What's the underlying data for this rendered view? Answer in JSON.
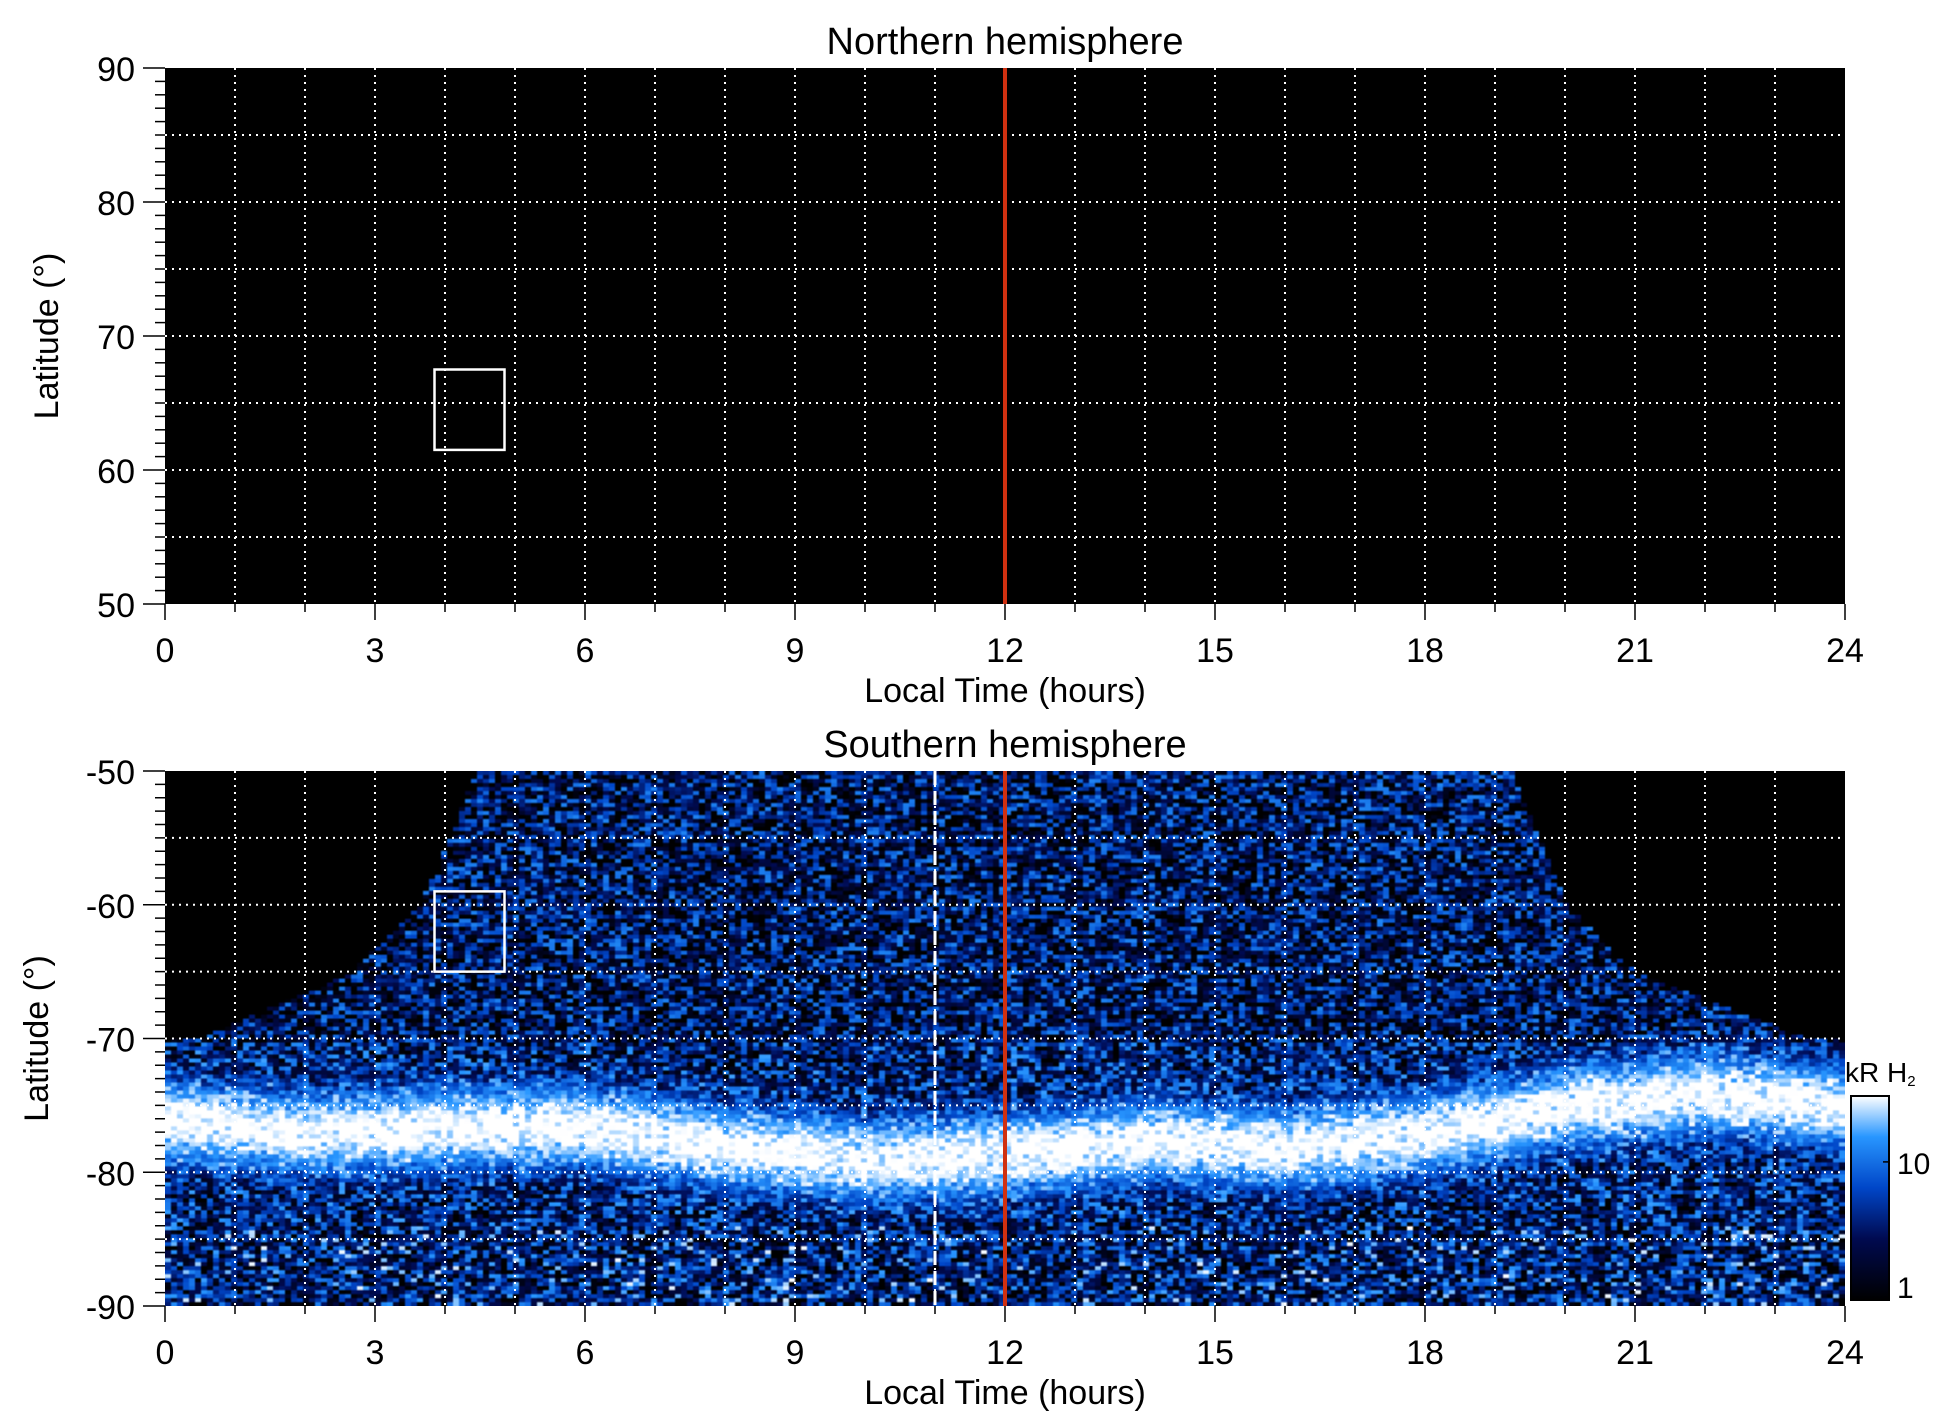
{
  "chart_data": [
    {
      "type": "heatmap",
      "title": "Northern hemisphere",
      "xlabel": "Local Time (hours)",
      "ylabel": "Latitude (°)",
      "xlim": [
        0,
        24
      ],
      "ylim": [
        50,
        90
      ],
      "xticks": [
        "0",
        "3",
        "6",
        "9",
        "12",
        "15",
        "18",
        "21",
        "24"
      ],
      "yticks": [
        "50",
        "60",
        "70",
        "80",
        "90"
      ],
      "grid": true,
      "noon_line_lt": 12,
      "box": {
        "lt": [
          3.85,
          4.85
        ],
        "lat": [
          61.5,
          67.5
        ]
      },
      "data": "no emission (all black)"
    },
    {
      "type": "heatmap",
      "title": "Southern hemisphere",
      "xlabel": "Local Time (hours)",
      "ylabel": "Latitude (°)",
      "xlim": [
        0,
        24
      ],
      "ylim": [
        -90,
        -50
      ],
      "xticks": [
        "0",
        "3",
        "6",
        "9",
        "12",
        "15",
        "18",
        "21",
        "24"
      ],
      "yticks": [
        "-90",
        "-80",
        "-70",
        "-60",
        "-50"
      ],
      "grid": true,
      "noon_line_lt": 12,
      "dashed_line_lt": 11,
      "box": {
        "lt": [
          3.85,
          4.85
        ],
        "lat": [
          -65,
          -59
        ]
      },
      "coverage_edge": {
        "lat": [
          -50,
          -55,
          -60,
          -65,
          -70
        ],
        "lt_left": [
          4.4,
          4.0,
          3.6,
          2.6,
          0.4
        ],
        "lt_right": [
          19.2,
          19.6,
          20.0,
          21.0,
          23.5
        ]
      },
      "aurora_oval": {
        "lt": [
          0,
          2,
          4,
          6,
          8,
          10,
          12,
          14,
          16,
          18,
          20,
          22,
          24
        ],
        "lat": [
          -76,
          -77,
          -76.5,
          -76.5,
          -78,
          -79,
          -78.5,
          -77.5,
          -78,
          -77,
          -75,
          -74,
          -75
        ],
        "peak_kR": 30
      },
      "colorbar": {
        "label": "kR H",
        "label_sub": "2",
        "scale": "log",
        "range": [
          1,
          30
        ],
        "ticks": [
          "1",
          "10"
        ],
        "tick_values": [
          1,
          10
        ]
      }
    }
  ],
  "colors": {
    "noon_line": "#d03010",
    "grid": "#ffffff",
    "background": "#000000"
  }
}
